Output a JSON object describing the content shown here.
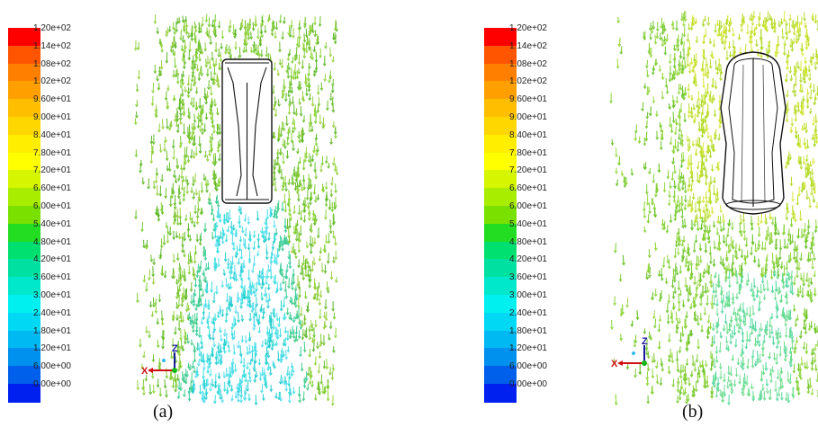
{
  "colorbar": {
    "tick_labels": [
      "1.20e+02",
      "1.14e+02",
      "1.08e+02",
      "1.02e+02",
      "9.60e+01",
      "9.00e+01",
      "8.40e+01",
      "7.80e+01",
      "7.20e+01",
      "6.60e+01",
      "6.00e+01",
      "5.40e+01",
      "4.80e+01",
      "4.20e+01",
      "3.60e+01",
      "3.00e+01",
      "2.40e+01",
      "1.80e+01",
      "1.20e+01",
      "6.00e+00",
      "0.00e+00"
    ],
    "colors": [
      "#ff0000",
      "#ff5500",
      "#ff8000",
      "#ffa000",
      "#ffbf00",
      "#ffd700",
      "#ffee00",
      "#ffff00",
      "#d5f500",
      "#a8ec00",
      "#7ae000",
      "#22dd22",
      "#00e070",
      "#00e0a0",
      "#00e8cc",
      "#00f0f0",
      "#00d8f4",
      "#00b8f2",
      "#0090ee",
      "#0060ec",
      "#0020f0"
    ]
  },
  "axes": {
    "z": "Z",
    "x": "X"
  },
  "panels": [
    {
      "id": "a",
      "caption": "(a)",
      "body_outline": "side"
    },
    {
      "id": "b",
      "caption": "(b)",
      "body_outline": "top"
    }
  ]
}
